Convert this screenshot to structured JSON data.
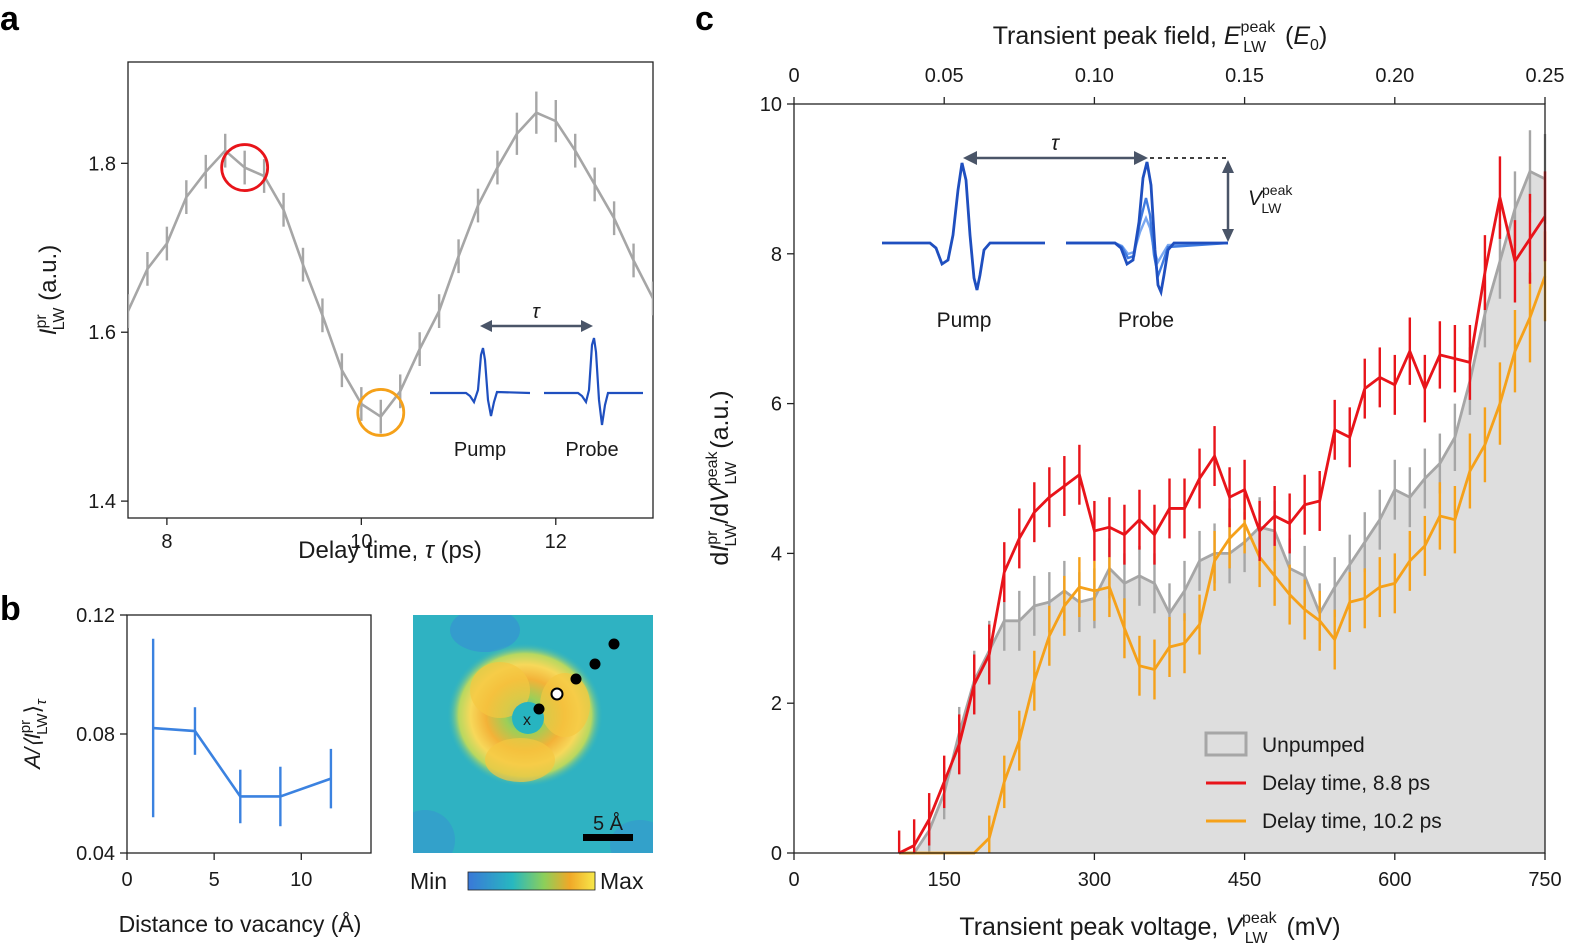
{
  "panels": {
    "a": "a",
    "b": "b",
    "c": "c"
  },
  "chart_data": [
    {
      "id": "a",
      "type": "line",
      "title": "",
      "xlabel_text": "Delay time, ",
      "xlabel_sym": "τ",
      "xlabel_unit": " (ps)",
      "ylabel_sym": "I",
      "ylabel_sup": "pr",
      "ylabel_sub": "LW",
      "ylabel_unit": " (a.u.)",
      "xlim": [
        7.6,
        13.0
      ],
      "ylim": [
        1.38,
        1.92
      ],
      "xticks": [
        8,
        10,
        12
      ],
      "yticks": [
        1.4,
        1.6,
        1.8
      ],
      "ytick_labels": [
        "1.4",
        "1.6",
        "1.8"
      ],
      "series": [
        {
          "name": "I_LW^pr",
          "color": "#a6a6a6",
          "x": [
            7.6,
            7.8,
            8.0,
            8.2,
            8.4,
            8.6,
            8.8,
            9.0,
            9.2,
            9.4,
            9.6,
            9.8,
            10.0,
            10.2,
            10.4,
            10.6,
            10.8,
            11.0,
            11.2,
            11.4,
            11.6,
            11.8,
            12.0,
            12.2,
            12.4,
            12.6,
            12.8,
            13.0
          ],
          "y": [
            1.625,
            1.675,
            1.705,
            1.76,
            1.79,
            1.815,
            1.795,
            1.785,
            1.745,
            1.68,
            1.62,
            1.555,
            1.515,
            1.5,
            1.53,
            1.58,
            1.625,
            1.69,
            1.75,
            1.795,
            1.835,
            1.86,
            1.85,
            1.815,
            1.775,
            1.735,
            1.685,
            1.64
          ],
          "err": [
            0.02,
            0.02,
            0.02,
            0.02,
            0.02,
            0.02,
            0.02,
            0.02,
            0.02,
            0.02,
            0.02,
            0.02,
            0.02,
            0.02,
            0.02,
            0.02,
            0.02,
            0.02,
            0.02,
            0.02,
            0.025,
            0.025,
            0.025,
            0.02,
            0.02,
            0.02,
            0.02,
            0.02
          ]
        }
      ],
      "markers": [
        {
          "name": "red-circle",
          "x": 8.8,
          "y": 1.795,
          "color": "#e8141a"
        },
        {
          "name": "orange-circle",
          "x": 10.2,
          "y": 1.505,
          "color": "#f5a11a"
        }
      ],
      "inset": {
        "tau": "τ",
        "pump": "Pump",
        "probe": "Probe"
      }
    },
    {
      "id": "b",
      "type": "line",
      "xlabel": "Distance to vacancy (Å)",
      "ylabel_prefix": "A/⟨",
      "ylabel_sym": "I",
      "ylabel_sup": "pr",
      "ylabel_sub": "LW",
      "ylabel_suffix": "⟩",
      "ylabel_tail": "τ",
      "xlim": [
        0,
        14
      ],
      "ylim": [
        0.04,
        0.12
      ],
      "xticks": [
        0,
        5,
        10
      ],
      "yticks": [
        0.04,
        0.08,
        0.12
      ],
      "ytick_labels": [
        "0.04",
        "0.08",
        "0.12"
      ],
      "series": [
        {
          "name": "amplitude",
          "color": "#3b82e0",
          "x": [
            1.5,
            3.9,
            6.5,
            8.8,
            11.7
          ],
          "y": [
            0.082,
            0.081,
            0.059,
            0.059,
            0.065
          ],
          "err": [
            0.03,
            0.008,
            0.009,
            0.01,
            0.01
          ]
        }
      ],
      "image": {
        "scalebar": "5 Å",
        "cmap_min": "Min",
        "cmap_max": "Max",
        "vacancy_mark": "x"
      }
    },
    {
      "id": "c",
      "type": "line",
      "xlabel_text": "Transient peak voltage, ",
      "xlabel_sym": "V",
      "xlabel_sup": "peak",
      "xlabel_sub": "LW",
      "xlabel_unit": " (mV)",
      "top_xlabel_text": "Transient peak field, ",
      "top_xlabel_sym": "E",
      "top_xlabel_sup": "peak",
      "top_xlabel_sub": "LW",
      "top_xlabel_unit_open": " (",
      "top_xlabel_unit_sym": "E",
      "top_xlabel_unit_sub": "0",
      "top_xlabel_unit_close": ")",
      "ylabel_d1": "d",
      "ylabel_sym1": "I",
      "ylabel_sup1": "pr",
      "ylabel_sub1": "LW",
      "ylabel_mid": "/d",
      "ylabel_sym2": "V",
      "ylabel_sup2": "peak",
      "ylabel_sub2": "LW",
      "ylabel_unit": " (a.u.)",
      "xlim": [
        0,
        750
      ],
      "ylim": [
        0,
        10
      ],
      "xticks": [
        0,
        150,
        300,
        450,
        600,
        750
      ],
      "top_xticks": [
        0,
        0.05,
        0.1,
        0.15,
        0.2,
        0.25
      ],
      "top_xtick_labels": [
        "0",
        "0.05",
        "0.10",
        "0.15",
        "0.20",
        "0.25"
      ],
      "yticks": [
        0,
        2,
        4,
        6,
        8,
        10
      ],
      "x": [
        105,
        120,
        135,
        150,
        165,
        180,
        195,
        210,
        225,
        240,
        255,
        270,
        285,
        300,
        315,
        330,
        345,
        360,
        375,
        390,
        405,
        420,
        435,
        450,
        465,
        480,
        495,
        510,
        525,
        540,
        555,
        570,
        585,
        600,
        615,
        630,
        645,
        660,
        675,
        690,
        705,
        720,
        735,
        750
      ],
      "series": [
        {
          "name": "Unpumped",
          "color": "#a6a6a6",
          "fill": "#dedede",
          "y": [
            0,
            0,
            0.3,
            0.8,
            1.6,
            2.3,
            2.7,
            3.1,
            3.1,
            3.3,
            3.35,
            3.5,
            3.35,
            3.4,
            3.8,
            3.6,
            3.7,
            3.6,
            3.2,
            3.5,
            3.9,
            4.0,
            4.0,
            4.15,
            4.35,
            4.3,
            3.8,
            3.7,
            3.2,
            3.55,
            3.85,
            4.15,
            4.45,
            4.85,
            4.75,
            5.0,
            5.2,
            5.55,
            6.3,
            7.2,
            7.9,
            8.6,
            9.1,
            9.0
          ],
          "err": [
            0,
            0,
            0.35,
            0.35,
            0.35,
            0.4,
            0.4,
            0.4,
            0.4,
            0.4,
            0.4,
            0.4,
            0.4,
            0.4,
            0.4,
            0.4,
            0.4,
            0.4,
            0.4,
            0.4,
            0.4,
            0.4,
            0.4,
            0.4,
            0.4,
            0.4,
            0.4,
            0.4,
            0.4,
            0.4,
            0.4,
            0.4,
            0.4,
            0.4,
            0.4,
            0.4,
            0.4,
            0.45,
            0.45,
            0.45,
            0.5,
            0.5,
            0.55,
            0.6
          ]
        },
        {
          "name": "Delay time, 8.8 ps",
          "color": "#e8141a",
          "y": [
            0,
            0.1,
            0.45,
            0.95,
            1.45,
            2.25,
            2.65,
            3.75,
            4.2,
            4.55,
            4.75,
            4.9,
            5.05,
            4.3,
            4.35,
            4.25,
            4.45,
            4.25,
            4.6,
            4.6,
            5.0,
            5.3,
            4.75,
            4.85,
            4.3,
            4.5,
            4.4,
            4.65,
            4.7,
            5.65,
            5.55,
            6.2,
            6.35,
            6.25,
            6.7,
            6.2,
            6.65,
            6.6,
            6.55,
            7.75,
            8.75,
            7.9,
            8.2,
            8.5
          ],
          "err": [
            0.3,
            0.35,
            0.35,
            0.35,
            0.4,
            0.4,
            0.4,
            0.4,
            0.4,
            0.4,
            0.4,
            0.4,
            0.4,
            0.4,
            0.4,
            0.4,
            0.4,
            0.4,
            0.4,
            0.4,
            0.4,
            0.4,
            0.4,
            0.4,
            0.4,
            0.4,
            0.4,
            0.4,
            0.4,
            0.4,
            0.4,
            0.4,
            0.4,
            0.4,
            0.45,
            0.45,
            0.45,
            0.45,
            0.5,
            0.5,
            0.55,
            0.55,
            0.6,
            0.6
          ]
        },
        {
          "name": "Delay time, 10.2 ps",
          "color": "#f5a11a",
          "y": [
            0,
            0,
            0,
            0,
            0,
            0,
            0.2,
            0.95,
            1.5,
            2.3,
            2.9,
            3.3,
            3.55,
            3.5,
            3.55,
            3.0,
            2.5,
            2.45,
            2.75,
            2.8,
            3.05,
            3.9,
            4.2,
            4.4,
            3.95,
            3.7,
            3.45,
            3.25,
            3.1,
            2.85,
            3.35,
            3.4,
            3.55,
            3.6,
            3.9,
            4.1,
            4.5,
            4.45,
            5.1,
            5.45,
            6.0,
            6.7,
            7.15,
            7.7
          ],
          "err": [
            0,
            0,
            0,
            0,
            0,
            0,
            0.3,
            0.35,
            0.4,
            0.4,
            0.4,
            0.4,
            0.4,
            0.4,
            0.4,
            0.4,
            0.4,
            0.4,
            0.4,
            0.4,
            0.4,
            0.4,
            0.4,
            0.4,
            0.4,
            0.4,
            0.4,
            0.4,
            0.4,
            0.4,
            0.4,
            0.4,
            0.4,
            0.4,
            0.4,
            0.4,
            0.45,
            0.45,
            0.5,
            0.5,
            0.55,
            0.55,
            0.6,
            0.6
          ]
        }
      ],
      "legend": {
        "position": "lower-right",
        "items": [
          "Unpumped",
          "Delay time, 8.8 ps",
          "Delay time, 10.2 ps"
        ]
      },
      "inset": {
        "tau": "τ",
        "pump": "Pump",
        "probe": "Probe",
        "v_sym": "V",
        "v_sup": "peak",
        "v_sub": "LW"
      }
    }
  ]
}
